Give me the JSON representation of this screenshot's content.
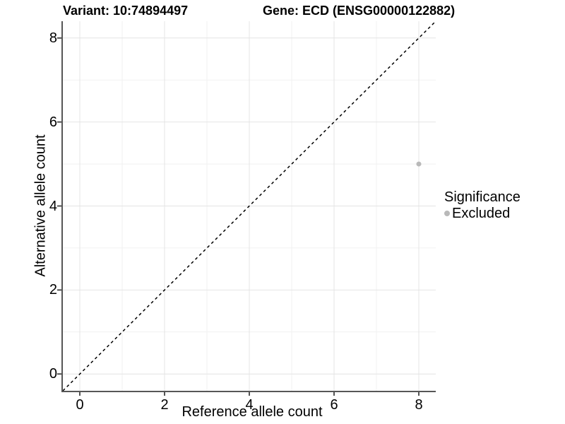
{
  "chart_data": {
    "type": "scatter",
    "titles": {
      "left": "Variant: 10:74894497",
      "right": "Gene: ECD (ENSG00000122882)"
    },
    "xlabel": "Reference allele count",
    "ylabel": "Alternative allele count",
    "xlim": [
      -0.4,
      8.4
    ],
    "ylim": [
      -0.4,
      8.4
    ],
    "x_major_ticks": [
      0,
      2,
      4,
      6,
      8
    ],
    "y_major_ticks": [
      0,
      2,
      4,
      6,
      8
    ],
    "x_minor_ticks": [
      1,
      3,
      5,
      7
    ],
    "y_minor_ticks": [
      1,
      3,
      5,
      7
    ],
    "grid": "major and minor gridlines, light gray on white",
    "reference_line": {
      "slope": 1,
      "intercept": 0,
      "style": "dashed",
      "color": "#000000"
    },
    "series": [
      {
        "name": "Excluded",
        "color": "#b9b9b9",
        "point_radius": 3.5,
        "points": [
          {
            "x": 8,
            "y": 5
          }
        ]
      }
    ],
    "legend": {
      "title": "Significance",
      "position": "right",
      "items": [
        {
          "label": "Excluded",
          "color": "#b9b9b9"
        }
      ]
    },
    "colors": {
      "grid_major": "#e4e4e4",
      "grid_minor": "#f1f1f1",
      "axis_line": "#565656",
      "tick": "#404040",
      "text": "#000000",
      "background": "#ffffff"
    }
  }
}
